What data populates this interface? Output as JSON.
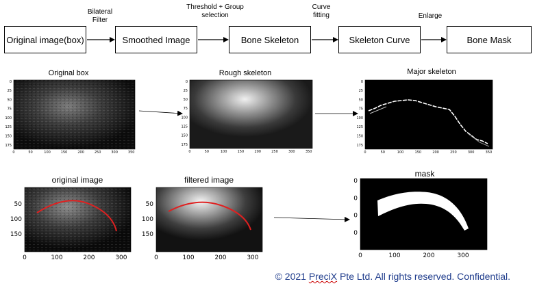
{
  "pipeline": {
    "boxes": [
      "Original image(box)",
      "Smoothed Image",
      "Bone Skeleton",
      "Skeleton Curve",
      "Bone Mask"
    ],
    "arrow_labels": [
      "Bilateral Filter",
      "Threshold + Group selection",
      "Curve fitting",
      "Enlarge"
    ]
  },
  "panels": {
    "original_box": {
      "title": "Original box",
      "yticks": [
        "0",
        "25",
        "50",
        "75",
        "100",
        "125",
        "150",
        "175"
      ],
      "xticks": [
        "0",
        "50",
        "100",
        "150",
        "200",
        "250",
        "300",
        "350"
      ]
    },
    "rough_skeleton": {
      "title": "Rough skeleton",
      "yticks": [
        "0",
        "25",
        "50",
        "75",
        "100",
        "125",
        "150",
        "175"
      ],
      "xticks": [
        "0",
        "50",
        "100",
        "150",
        "200",
        "250",
        "300",
        "350"
      ]
    },
    "major_skeleton": {
      "title": "Major skeleton",
      "yticks": [
        "0",
        "25",
        "50",
        "75",
        "100",
        "125",
        "150",
        "175"
      ],
      "xticks": [
        "0",
        "50",
        "100",
        "150",
        "200",
        "250",
        "300",
        "350"
      ]
    },
    "original_image": {
      "title": "original image",
      "yticks": [
        "50",
        "100",
        "150"
      ],
      "xticks": [
        "0",
        "100",
        "200",
        "300"
      ]
    },
    "filtered_image": {
      "title": "filtered image",
      "yticks": [
        "50",
        "100",
        "150"
      ],
      "xticks": [
        "0",
        "100",
        "200",
        "300"
      ]
    },
    "mask": {
      "title": "mask",
      "yticks": [
        "0",
        "0",
        "0",
        "0"
      ],
      "xticks": [
        "0",
        "100",
        "200",
        "300"
      ]
    }
  },
  "colors": {
    "curve": "#e02020",
    "footer": "#1f3c8c"
  },
  "footer": {
    "prefix": "© 2021 ",
    "underlined": "PreciX",
    "suffix": " Pte Ltd. All rights reserved. Confidential."
  }
}
